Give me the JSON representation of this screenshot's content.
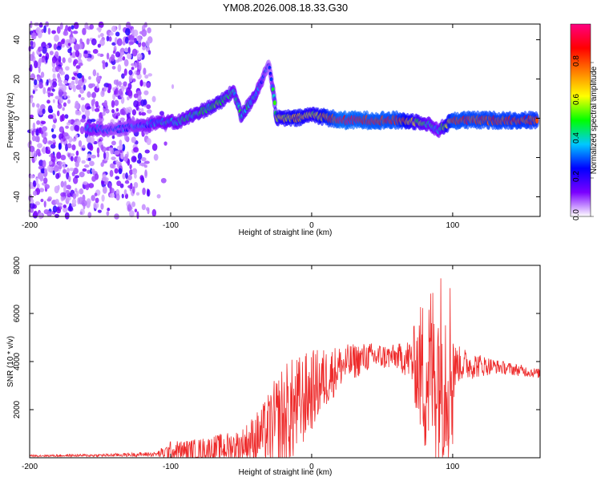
{
  "title": "YM08.2026.008.18.33.G30",
  "chart_data": [
    {
      "type": "heatmap",
      "name": "spectrogram",
      "xlabel": "Height of straight line (km)",
      "ylabel": "Frequency (Hz)",
      "xlim": [
        -200,
        162
      ],
      "ylim": [
        -50,
        48
      ],
      "xticks": [
        -200,
        -100,
        0,
        100
      ],
      "yticks": [
        -40,
        -20,
        0,
        20,
        40
      ],
      "colorbar": {
        "label": "Normalized spectral amplitude",
        "range": [
          0,
          1
        ],
        "ticks": [
          "0.0",
          "0.2",
          "0.4",
          "0.6",
          "0.8"
        ],
        "colors": [
          "#ffffff",
          "#7b00ff",
          "#0000ff",
          "#00c8ff",
          "#00ff00",
          "#ffff00",
          "#ff8000",
          "#ff0000",
          "#ff0080"
        ]
      },
      "features": {
        "noise_region_x": [
          -200,
          -115
        ],
        "signal_track": [
          {
            "x": -160,
            "f": -5,
            "a": 0.35
          },
          {
            "x": -140,
            "f": -6,
            "a": 0.25
          },
          {
            "x": -125,
            "f": -4,
            "a": 0.3
          },
          {
            "x": -110,
            "f": -2,
            "a": 0.35
          },
          {
            "x": -95,
            "f": -2,
            "a": 0.4
          },
          {
            "x": -80,
            "f": 3,
            "a": 0.45
          },
          {
            "x": -65,
            "f": 8,
            "a": 0.5
          },
          {
            "x": -55,
            "f": 14,
            "a": 0.4
          },
          {
            "x": -50,
            "f": 1,
            "a": 0.45
          },
          {
            "x": -40,
            "f": 12,
            "a": 0.4
          },
          {
            "x": -30,
            "f": 28,
            "a": 0.2
          },
          {
            "x": -25,
            "f": 0,
            "a": 0.6
          },
          {
            "x": -10,
            "f": 0,
            "a": 0.7
          },
          {
            "x": 0,
            "f": 2,
            "a": 0.6
          },
          {
            "x": 20,
            "f": -1,
            "a": 0.9
          },
          {
            "x": 60,
            "f": -1,
            "a": 0.85
          },
          {
            "x": 80,
            "f": -2,
            "a": 0.45
          },
          {
            "x": 90,
            "f": -6,
            "a": 0.35
          },
          {
            "x": 100,
            "f": -1,
            "a": 0.85
          },
          {
            "x": 160,
            "f": -1,
            "a": 0.8
          }
        ]
      }
    },
    {
      "type": "line",
      "name": "snr",
      "xlabel": "Height of straight line (km)",
      "ylabel": "SNR (10 * v/v)",
      "xlim": [
        -200,
        162
      ],
      "ylim": [
        0,
        8000
      ],
      "xticks": [
        -200,
        -100,
        0,
        100
      ],
      "yticks": [
        2000,
        4000,
        6000,
        8000
      ],
      "color": "#ee2b2b",
      "envelope": [
        {
          "x": -200,
          "mean": 80,
          "amp": 40
        },
        {
          "x": -150,
          "mean": 100,
          "amp": 60
        },
        {
          "x": -110,
          "mean": 150,
          "amp": 100
        },
        {
          "x": -100,
          "mean": 250,
          "amp": 450
        },
        {
          "x": -80,
          "mean": 300,
          "amp": 500
        },
        {
          "x": -50,
          "mean": 500,
          "amp": 700
        },
        {
          "x": -35,
          "mean": 1000,
          "amp": 1200
        },
        {
          "x": -20,
          "mean": 1500,
          "amp": 2500
        },
        {
          "x": 0,
          "mean": 2800,
          "amp": 1700
        },
        {
          "x": 20,
          "mean": 3800,
          "amp": 900
        },
        {
          "x": 40,
          "mean": 4200,
          "amp": 600
        },
        {
          "x": 60,
          "mean": 4200,
          "amp": 500
        },
        {
          "x": 70,
          "mean": 4100,
          "amp": 900
        },
        {
          "x": 80,
          "mean": 3500,
          "amp": 3500
        },
        {
          "x": 90,
          "mean": 3800,
          "amp": 4200
        },
        {
          "x": 100,
          "mean": 3800,
          "amp": 4000
        },
        {
          "x": 102,
          "mean": 3900,
          "amp": 800
        },
        {
          "x": 130,
          "mean": 3800,
          "amp": 300
        },
        {
          "x": 162,
          "mean": 3500,
          "amp": 200
        }
      ]
    }
  ]
}
